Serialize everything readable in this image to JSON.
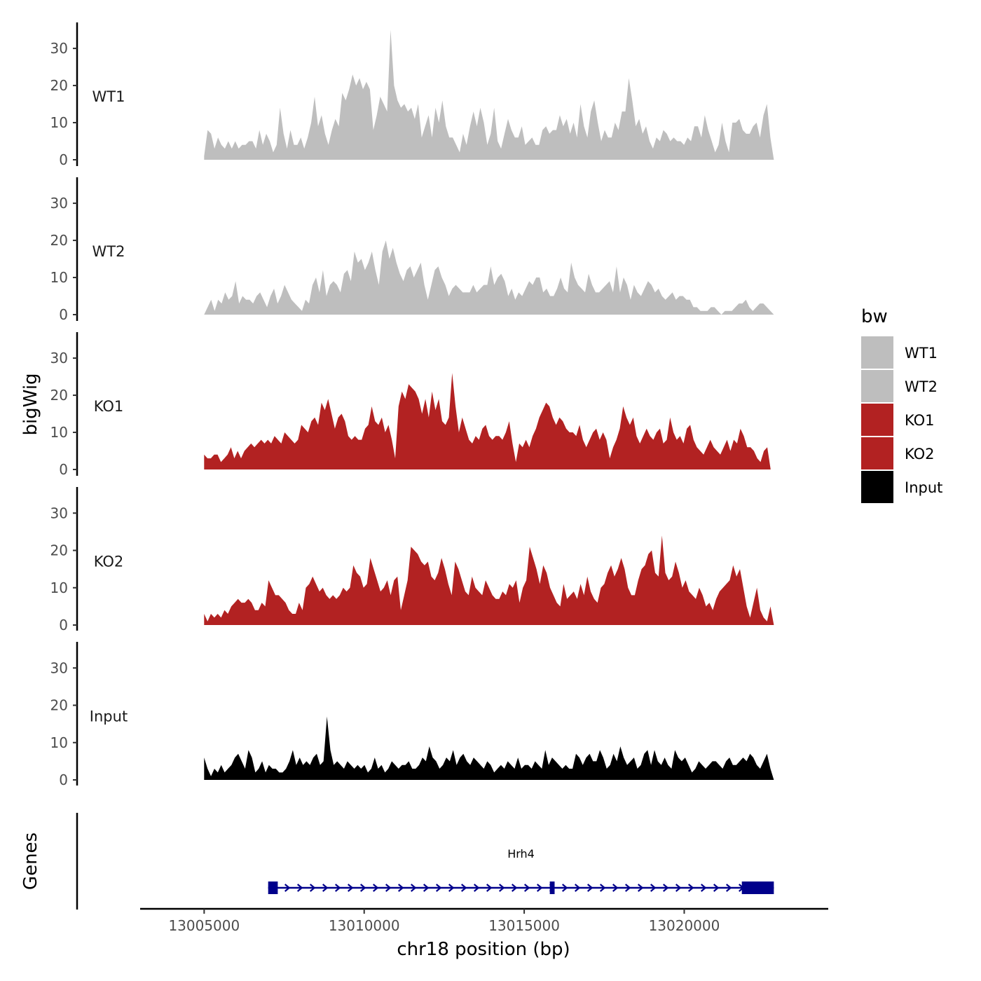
{
  "chart_data": {
    "type": "area",
    "title": "",
    "xlabel": "chr18 position (bp)",
    "ylabel": "bigWig",
    "genes_label": "Genes",
    "xlim": [
      13003000,
      13024500
    ],
    "ylim": [
      0,
      37
    ],
    "x_ticks": [
      13005000,
      13010000,
      13015000,
      13020000
    ],
    "x_tick_labels": [
      "13005000",
      "13010000",
      "13015000",
      "13020000"
    ],
    "y_ticks": [
      0,
      10,
      20,
      30
    ],
    "y_tick_labels": [
      "0",
      "10",
      "20",
      "30"
    ],
    "legend": {
      "title": "bw",
      "position": "right",
      "entries": [
        {
          "label": "WT1",
          "color": "#BEBEBE"
        },
        {
          "label": "WT2",
          "color": "#BEBEBE"
        },
        {
          "label": "KO1",
          "color": "#B22222"
        },
        {
          "label": "KO2",
          "color": "#B22222"
        },
        {
          "label": "Input",
          "color": "#000000"
        }
      ]
    },
    "series": [
      {
        "name": "WT1",
        "label": "WT1",
        "color": "#BEBEBE",
        "x_start": 13005000,
        "x_end": 13022800,
        "values": [
          1,
          8,
          7,
          3,
          6,
          4,
          3,
          5,
          3,
          5,
          3,
          4,
          4,
          5,
          5,
          3,
          8,
          4,
          7,
          5,
          2,
          4,
          14,
          7,
          3,
          8,
          4,
          4,
          6,
          3,
          6,
          10,
          17,
          9,
          12,
          7,
          4,
          8,
          11,
          9,
          18,
          16,
          19,
          23,
          20,
          22,
          19,
          21,
          19,
          8,
          12,
          17,
          15,
          13,
          35,
          20,
          16,
          14,
          15,
          13,
          14,
          11,
          15,
          6,
          9,
          12,
          6,
          14,
          10,
          16,
          9,
          6,
          6,
          4,
          2,
          7,
          4,
          9,
          13,
          9,
          14,
          10,
          4,
          7,
          14,
          5,
          3,
          7,
          11,
          8,
          6,
          6,
          9,
          4,
          5,
          6,
          4,
          4,
          8,
          9,
          7,
          8,
          8,
          12,
          9,
          11,
          7,
          10,
          6,
          15,
          9,
          6,
          13,
          16,
          10,
          5,
          8,
          6,
          6,
          10,
          8,
          13,
          13,
          22,
          16,
          9,
          11,
          7,
          9,
          5,
          3,
          6,
          5,
          8,
          7,
          5,
          6,
          5,
          5,
          4,
          6,
          5,
          9,
          9,
          6,
          12,
          8,
          5,
          2,
          4,
          10,
          5,
          2,
          10,
          10,
          11,
          8,
          7,
          7,
          9,
          10,
          6,
          12,
          15,
          6,
          0
        ],
        "annotation": ""
      },
      {
        "name": "WT2",
        "label": "WT2",
        "color": "#BEBEBE",
        "x_start": 13005000,
        "x_end": 13022800,
        "values": [
          0,
          2,
          4,
          1,
          4,
          3,
          6,
          4,
          5,
          9,
          3,
          5,
          4,
          4,
          3,
          5,
          6,
          4,
          2,
          5,
          7,
          3,
          5,
          8,
          6,
          4,
          3,
          2,
          1,
          4,
          3,
          8,
          10,
          6,
          12,
          5,
          8,
          9,
          8,
          6,
          11,
          12,
          9,
          17,
          14,
          15,
          12,
          14,
          17,
          12,
          8,
          17,
          20,
          15,
          18,
          14,
          11,
          9,
          12,
          13,
          10,
          12,
          14,
          8,
          4,
          8,
          12,
          13,
          10,
          8,
          5,
          7,
          8,
          7,
          6,
          6,
          6,
          8,
          6,
          7,
          8,
          8,
          13,
          8,
          10,
          11,
          9,
          5,
          7,
          4,
          6,
          5,
          7,
          9,
          8,
          10,
          10,
          6,
          7,
          5,
          5,
          7,
          10,
          7,
          6,
          14,
          10,
          8,
          7,
          6,
          11,
          8,
          6,
          6,
          7,
          8,
          9,
          6,
          13,
          6,
          10,
          8,
          4,
          8,
          6,
          5,
          7,
          9,
          8,
          6,
          7,
          5,
          4,
          5,
          6,
          4,
          5,
          5,
          4,
          4,
          2,
          2,
          1,
          1,
          1,
          2,
          2,
          1,
          0,
          1,
          1,
          1,
          2,
          3,
          3,
          4,
          2,
          1,
          2,
          3,
          3,
          2,
          1,
          0
        ],
        "annotation": ""
      },
      {
        "name": "KO1",
        "label": "KO1",
        "color": "#B22222",
        "x_start": 13005000,
        "x_end": 13022700,
        "values": [
          4,
          3,
          3,
          4,
          4,
          2,
          3,
          4,
          6,
          3,
          5,
          3,
          5,
          6,
          7,
          6,
          7,
          8,
          7,
          8,
          7,
          9,
          8,
          7,
          10,
          9,
          8,
          7,
          8,
          12,
          11,
          10,
          13,
          14,
          12,
          18,
          16,
          19,
          15,
          11,
          14,
          15,
          13,
          9,
          8,
          9,
          8,
          8,
          11,
          12,
          17,
          13,
          12,
          14,
          10,
          12,
          8,
          3,
          17,
          21,
          19,
          23,
          22,
          21,
          19,
          15,
          19,
          14,
          21,
          16,
          19,
          13,
          12,
          14,
          26,
          17,
          10,
          14,
          11,
          8,
          7,
          9,
          8,
          11,
          12,
          9,
          8,
          9,
          9,
          8,
          10,
          13,
          7,
          2,
          7,
          6,
          8,
          6,
          9,
          11,
          14,
          16,
          18,
          17,
          14,
          12,
          14,
          13,
          11,
          10,
          10,
          9,
          12,
          8,
          6,
          8,
          10,
          11,
          8,
          10,
          8,
          3,
          6,
          8,
          11,
          17,
          14,
          12,
          14,
          9,
          7,
          9,
          11,
          9,
          8,
          10,
          11,
          7,
          8,
          14,
          10,
          8,
          9,
          7,
          11,
          12,
          8,
          6,
          5,
          4,
          6,
          8,
          6,
          5,
          4,
          6,
          8,
          5,
          8,
          7,
          11,
          9,
          6,
          6,
          5,
          3,
          2,
          5,
          6,
          0
        ],
        "annotation": ""
      },
      {
        "name": "KO2",
        "label": "KO2",
        "color": "#B22222",
        "x_start": 13005000,
        "x_end": 13022800,
        "values": [
          3,
          1,
          3,
          2,
          3,
          2,
          4,
          3,
          5,
          6,
          7,
          6,
          6,
          7,
          6,
          4,
          4,
          6,
          5,
          12,
          10,
          8,
          8,
          7,
          6,
          4,
          3,
          3,
          6,
          4,
          10,
          11,
          13,
          11,
          9,
          10,
          8,
          7,
          8,
          7,
          8,
          10,
          9,
          10,
          16,
          14,
          13,
          10,
          11,
          18,
          15,
          12,
          9,
          10,
          12,
          8,
          12,
          13,
          4,
          8,
          12,
          21,
          20,
          19,
          17,
          16,
          17,
          13,
          12,
          14,
          18,
          15,
          11,
          8,
          17,
          15,
          12,
          9,
          8,
          13,
          10,
          9,
          8,
          12,
          10,
          8,
          7,
          7,
          9,
          8,
          11,
          10,
          12,
          6,
          10,
          12,
          21,
          18,
          15,
          11,
          16,
          14,
          10,
          8,
          6,
          5,
          11,
          7,
          8,
          9,
          7,
          11,
          8,
          13,
          9,
          7,
          6,
          10,
          11,
          14,
          16,
          13,
          15,
          18,
          15,
          10,
          8,
          8,
          12,
          15,
          16,
          19,
          20,
          14,
          13,
          24,
          14,
          12,
          13,
          17,
          14,
          10,
          12,
          9,
          8,
          7,
          10,
          8,
          5,
          6,
          4,
          7,
          9,
          10,
          11,
          12,
          16,
          13,
          15,
          10,
          5,
          2,
          6,
          10,
          4,
          2,
          1,
          5,
          0
        ],
        "annotation": ""
      },
      {
        "name": "Input",
        "label": "Input",
        "color": "#000000",
        "x_start": 13005000,
        "x_end": 13022800,
        "values": [
          6,
          3,
          1,
          3,
          2,
          4,
          2,
          3,
          4,
          6,
          7,
          5,
          3,
          8,
          6,
          2,
          3,
          5,
          2,
          4,
          3,
          3,
          2,
          2,
          3,
          5,
          8,
          4,
          6,
          4,
          5,
          4,
          6,
          7,
          4,
          5,
          17,
          8,
          4,
          5,
          4,
          3,
          5,
          4,
          3,
          4,
          3,
          4,
          2,
          3,
          6,
          3,
          4,
          2,
          3,
          5,
          4,
          3,
          4,
          4,
          5,
          3,
          3,
          4,
          6,
          5,
          9,
          6,
          5,
          3,
          4,
          6,
          5,
          8,
          4,
          6,
          7,
          5,
          4,
          6,
          5,
          4,
          3,
          5,
          4,
          2,
          3,
          4,
          3,
          5,
          4,
          3,
          6,
          3,
          4,
          4,
          3,
          5,
          4,
          3,
          8,
          4,
          6,
          5,
          4,
          3,
          4,
          3,
          3,
          7,
          6,
          4,
          6,
          7,
          5,
          5,
          8,
          6,
          3,
          4,
          7,
          5,
          9,
          6,
          4,
          5,
          6,
          3,
          4,
          7,
          8,
          4,
          8,
          5,
          4,
          6,
          4,
          3,
          8,
          6,
          5,
          6,
          4,
          2,
          3,
          5,
          4,
          3,
          4,
          5,
          5,
          4,
          3,
          5,
          6,
          4,
          4,
          5,
          6,
          5,
          7,
          6,
          4,
          3,
          5,
          7,
          3,
          0
        ],
        "annotation": ""
      }
    ],
    "genes": [
      {
        "name": "Hrh4",
        "strand": "+",
        "start": 13007000,
        "end": 13022800,
        "color": "#00008B",
        "exons": [
          [
            13007000,
            13007300
          ],
          [
            13015800,
            13015950
          ],
          [
            13021800,
            13022800
          ]
        ]
      }
    ]
  }
}
